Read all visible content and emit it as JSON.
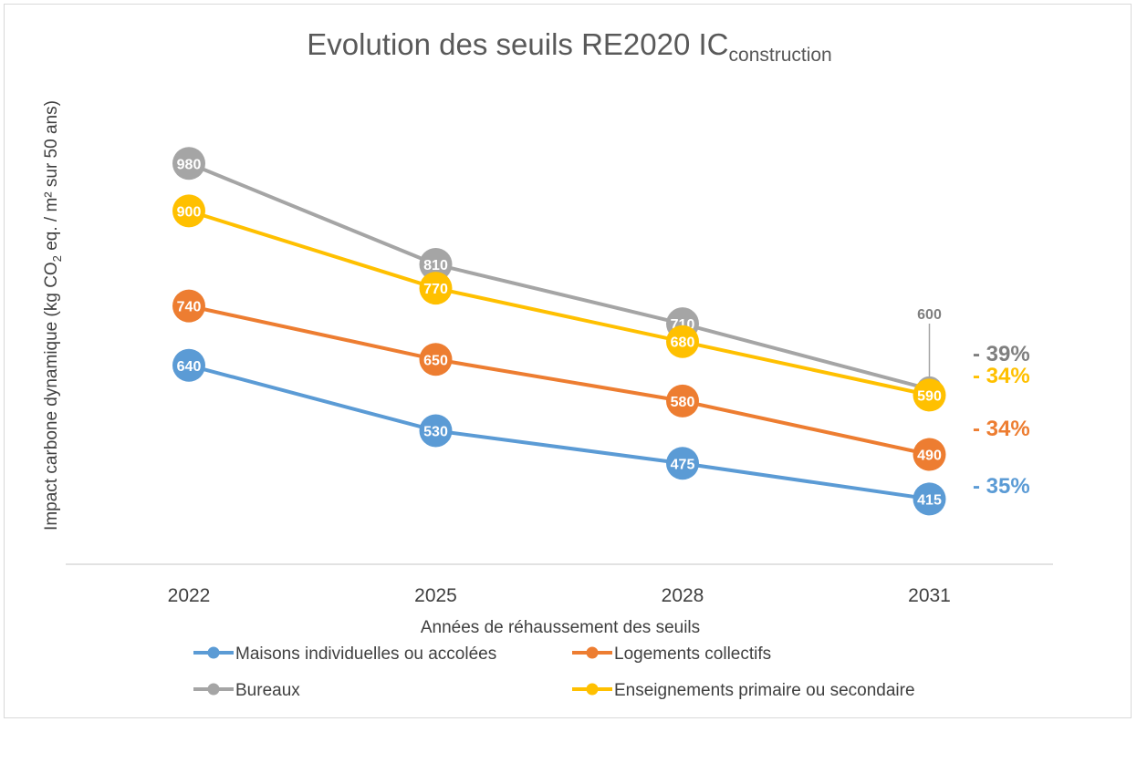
{
  "chart_data": {
    "type": "line",
    "title": "Evolution des seuils RE2020 IC",
    "title_subscript": "construction",
    "xlabel": "Années de réhaussement des seuils",
    "ylabel": "Impact carbone dynamique (kg CO",
    "ylabel_subscript": "2",
    "ylabel_suffix": " eq. / m² sur 50 ans)",
    "categories": [
      "2022",
      "2025",
      "2028",
      "2031"
    ],
    "ylim": [
      300,
      1000
    ],
    "grid": false,
    "legend_position": "bottom",
    "series": [
      {
        "name": "Maisons individuelles ou accolées",
        "color": "#5b9bd5",
        "values": [
          640,
          530,
          475,
          415
        ],
        "change": "- 35%"
      },
      {
        "name": "Logements collectifs",
        "color": "#ed7d31",
        "values": [
          740,
          650,
          580,
          490
        ],
        "change": "- 34%"
      },
      {
        "name": "Bureaux",
        "color": "#a5a5a5",
        "label_color": "#7f7f7f",
        "values": [
          980,
          810,
          710,
          600
        ],
        "change": "- 39%"
      },
      {
        "name": "Enseignements primaire ou secondaire",
        "color": "#ffc000",
        "values": [
          900,
          770,
          680,
          590
        ],
        "change": "- 34%"
      }
    ]
  }
}
